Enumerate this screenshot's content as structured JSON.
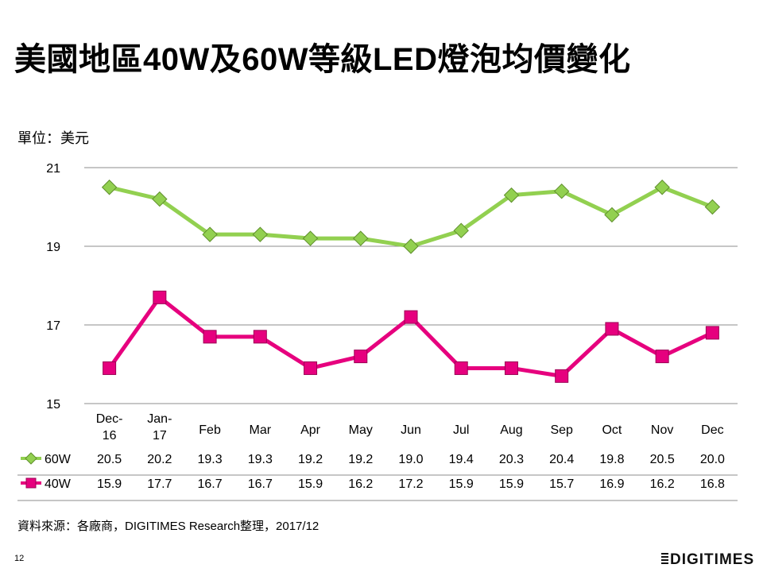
{
  "title": "美國地區40W及60W等級LED燈泡均價變化",
  "unit_label": "單位：美元",
  "source_note": "資料來源：各廠商，DIGITIMES Research整理，2017/12",
  "page_number": "12",
  "logo_text": "DIGITIMES",
  "chart_data": {
    "type": "line",
    "title": "美國地區40W及60W等級LED燈泡均價變化",
    "ylabel": "單位：美元",
    "xlabel": "",
    "ylim": [
      15,
      21
    ],
    "yticks": [
      "15",
      "17",
      "19",
      "21"
    ],
    "grid": true,
    "categories": [
      [
        "Dec-",
        "16"
      ],
      [
        "Jan-",
        "17"
      ],
      [
        "Feb"
      ],
      [
        "Mar"
      ],
      [
        "Apr"
      ],
      [
        "May"
      ],
      [
        "Jun"
      ],
      [
        "Jul"
      ],
      [
        "Aug"
      ],
      [
        "Sep"
      ],
      [
        "Oct"
      ],
      [
        "Nov"
      ],
      [
        "Dec"
      ]
    ],
    "series": [
      {
        "name": "60W",
        "color": "#92D050",
        "marker": "diamond",
        "values": [
          20.5,
          20.2,
          19.3,
          19.3,
          19.2,
          19.2,
          19.0,
          19.4,
          20.3,
          20.4,
          19.8,
          20.5,
          20.0
        ],
        "labels": [
          "20.5",
          "20.2",
          "19.3",
          "19.3",
          "19.2",
          "19.2",
          "19.0",
          "19.4",
          "20.3",
          "20.4",
          "19.8",
          "20.5",
          "20.0"
        ]
      },
      {
        "name": "40W",
        "color": "#E6007E",
        "marker": "square",
        "values": [
          15.9,
          17.7,
          16.7,
          16.7,
          15.9,
          16.2,
          17.2,
          15.9,
          15.9,
          15.7,
          16.9,
          16.2,
          16.8
        ],
        "labels": [
          "15.9",
          "17.7",
          "16.7",
          "16.7",
          "15.9",
          "16.2",
          "17.2",
          "15.9",
          "15.9",
          "15.7",
          "16.9",
          "16.2",
          "16.8"
        ]
      }
    ]
  }
}
